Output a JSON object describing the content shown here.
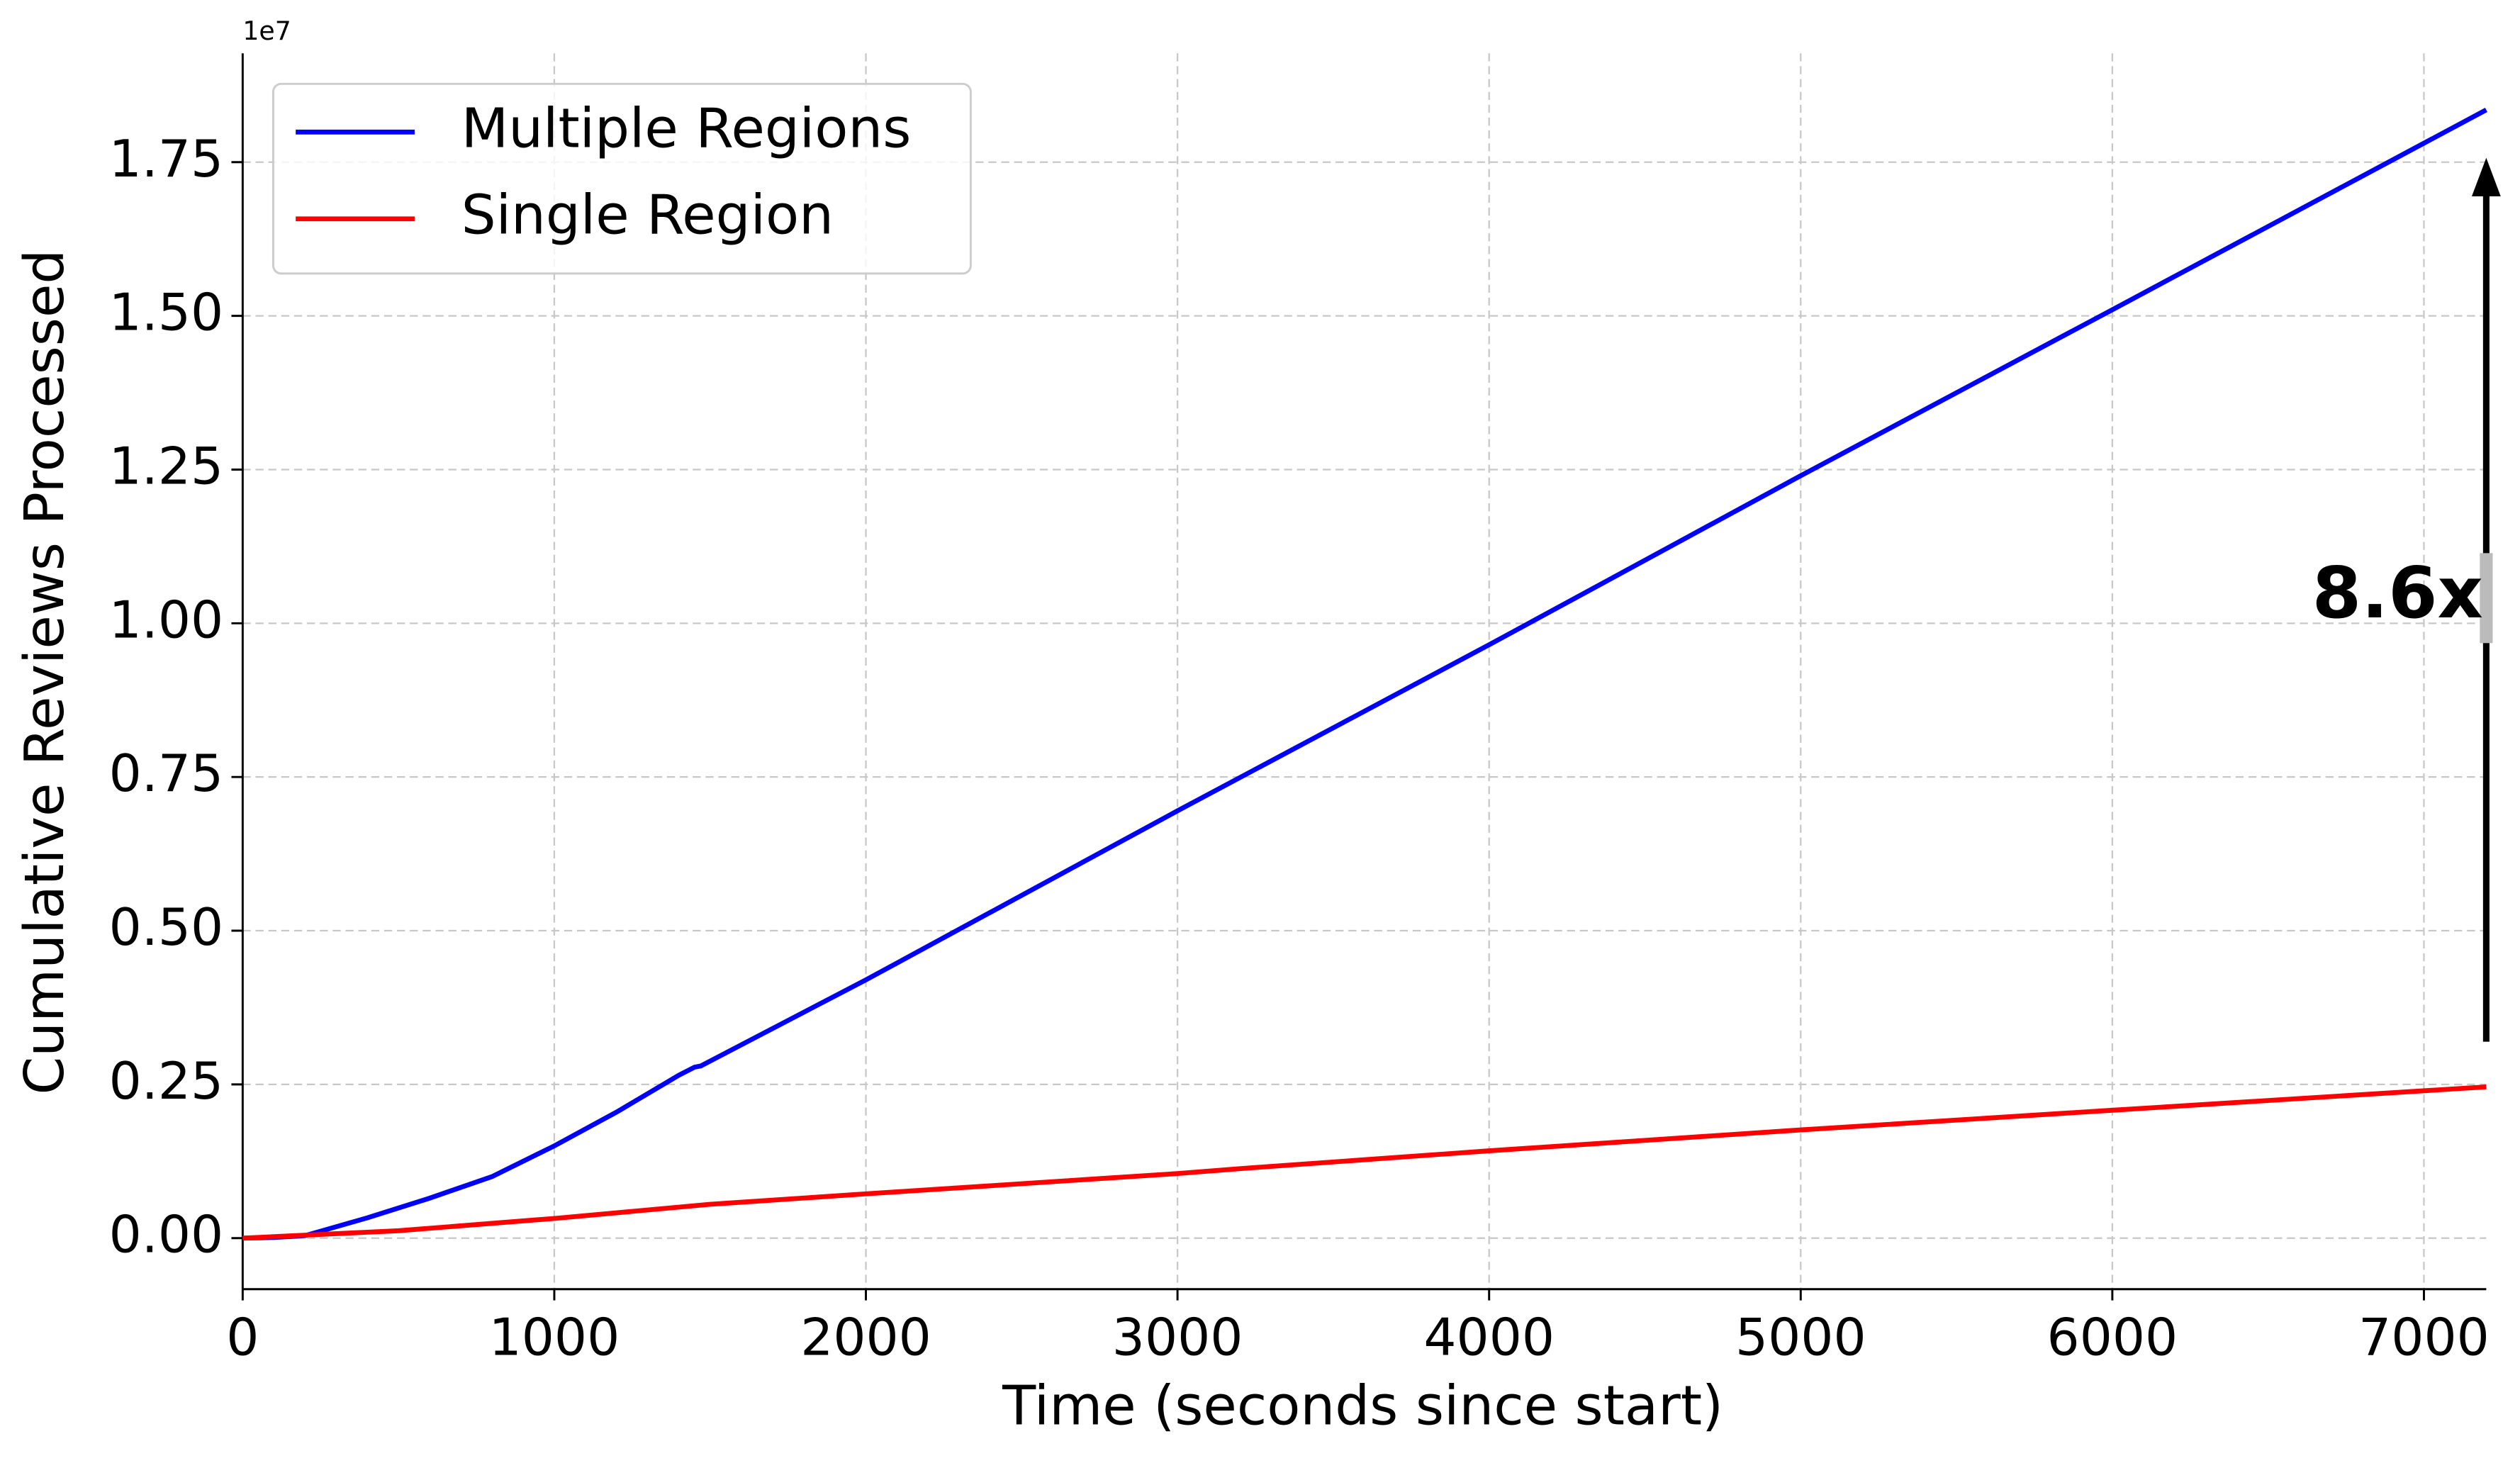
{
  "chart_data": {
    "type": "line",
    "xlabel": "Time (seconds since start)",
    "ylabel": "Cumulative Reviews Processed",
    "y_offset_text": "1e7",
    "annotation": "8.6x",
    "xlim": [
      0,
      7200
    ],
    "xticks": [
      0,
      1000,
      2000,
      3000,
      4000,
      5000,
      6000,
      7000
    ],
    "ylim": [
      -830000,
      19270000
    ],
    "yticks": [
      {
        "value": 0,
        "label": "0.00"
      },
      {
        "value": 2500000,
        "label": "0.25"
      },
      {
        "value": 5000000,
        "label": "0.50"
      },
      {
        "value": 7500000,
        "label": "0.75"
      },
      {
        "value": 10000000,
        "label": "1.00"
      },
      {
        "value": 12500000,
        "label": "1.25"
      },
      {
        "value": 15000000,
        "label": "1.50"
      },
      {
        "value": 17500000,
        "label": "1.75"
      }
    ],
    "grid": true,
    "legend": "upper left",
    "series": [
      {
        "name": "Multiple Regions",
        "color": "#0000ff",
        "x": [
          0,
          100,
          200,
          400,
          600,
          800,
          1000,
          1200,
          1400,
          1450,
          1470,
          2000,
          3000,
          4000,
          5000,
          6000,
          7200
        ],
        "values": [
          0,
          10000,
          40000,
          330000,
          650000,
          1000000,
          1500000,
          2050000,
          2650000,
          2780000,
          2800000,
          4200000,
          6950000,
          9650000,
          12400000,
          15100000,
          18350000
        ]
      },
      {
        "name": "Single Region",
        "color": "#ff0000",
        "x": [
          0,
          500,
          1000,
          1500,
          2000,
          3000,
          3200,
          4000,
          5000,
          6000,
          7200
        ],
        "values": [
          0,
          120000,
          320000,
          550000,
          720000,
          1050000,
          1130000,
          1420000,
          1760000,
          2080000,
          2460000
        ]
      }
    ]
  }
}
